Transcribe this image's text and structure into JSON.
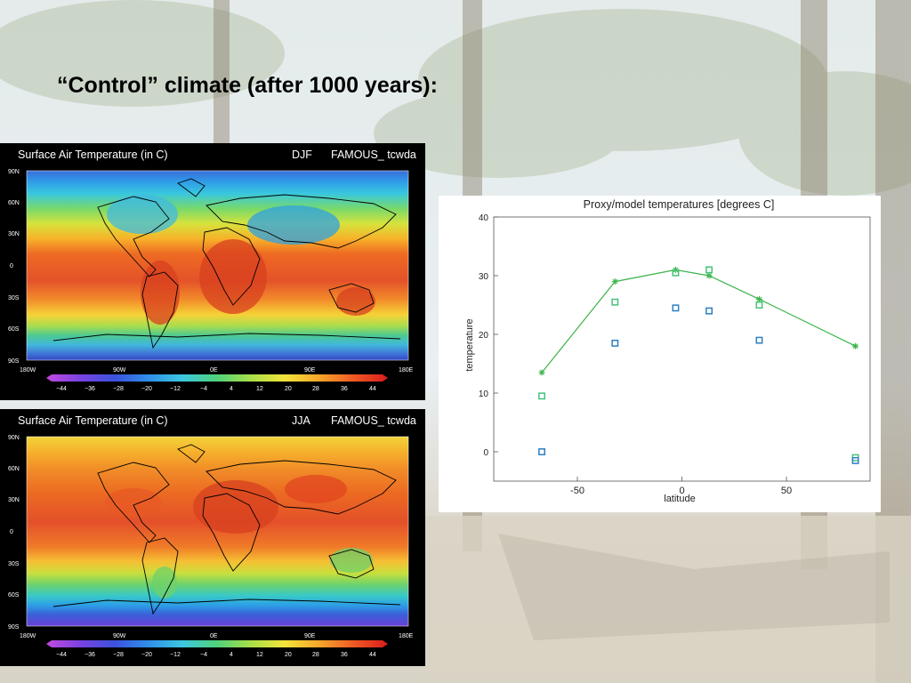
{
  "slide": {
    "title": "“Control” climate (after 1000 years):"
  },
  "maps": [
    {
      "title": "Surface Air Temperature (in C)",
      "season": "DJF",
      "model": "FAMOUS_ tcwda",
      "lat_labels": [
        "90N",
        "60N",
        "30N",
        "0",
        "30S",
        "60S",
        "90S"
      ],
      "lon_labels": [
        "180W",
        "90W",
        "0E",
        "90E",
        "180E"
      ],
      "colorbar_labels": [
        "−44",
        "−36",
        "−28",
        "−20",
        "−12",
        "−4",
        "4",
        "12",
        "20",
        "28",
        "36",
        "44"
      ]
    },
    {
      "title": "Surface Air Temperature (in C)",
      "season": "JJA",
      "model": "FAMOUS_ tcwda",
      "lat_labels": [
        "90N",
        "60N",
        "30N",
        "0",
        "30S",
        "60S",
        "90S"
      ],
      "lon_labels": [
        "180W",
        "90W",
        "0E",
        "90E",
        "180E"
      ],
      "colorbar_labels": [
        "−44",
        "−36",
        "−28",
        "−20",
        "−12",
        "−4",
        "4",
        "12",
        "20",
        "28",
        "36",
        "44"
      ]
    }
  ],
  "colors": {
    "model_line": "#3cb44b",
    "proxy_green": "#45c47a",
    "proxy_blue": "#2f7fc1"
  },
  "chart_data": {
    "type": "scatter",
    "title": "Proxy/model temperatures [degrees C]",
    "xlabel": "latitude",
    "ylabel": "temperature",
    "xlim": [
      -90,
      90
    ],
    "ylim": [
      -5,
      40
    ],
    "xticks": [
      -50,
      0,
      50
    ],
    "yticks": [
      0,
      10,
      20,
      30,
      40
    ],
    "series": [
      {
        "style": "line-star",
        "color": "#3cb44b",
        "x": [
          -67,
          -32,
          -3,
          13,
          37,
          83
        ],
        "y": [
          13.5,
          29,
          31,
          30,
          26,
          18
        ]
      },
      {
        "style": "square",
        "color": "#45c47a",
        "x": [
          -67,
          -32,
          -3,
          13,
          37,
          83
        ],
        "y": [
          9.5,
          25.5,
          30.5,
          31,
          25,
          -1
        ]
      },
      {
        "style": "square",
        "color": "#2f7fc1",
        "x": [
          -67,
          -32,
          -3,
          13,
          37,
          83
        ],
        "y": [
          0,
          18.5,
          24.5,
          24,
          19,
          -1.5
        ]
      }
    ]
  }
}
